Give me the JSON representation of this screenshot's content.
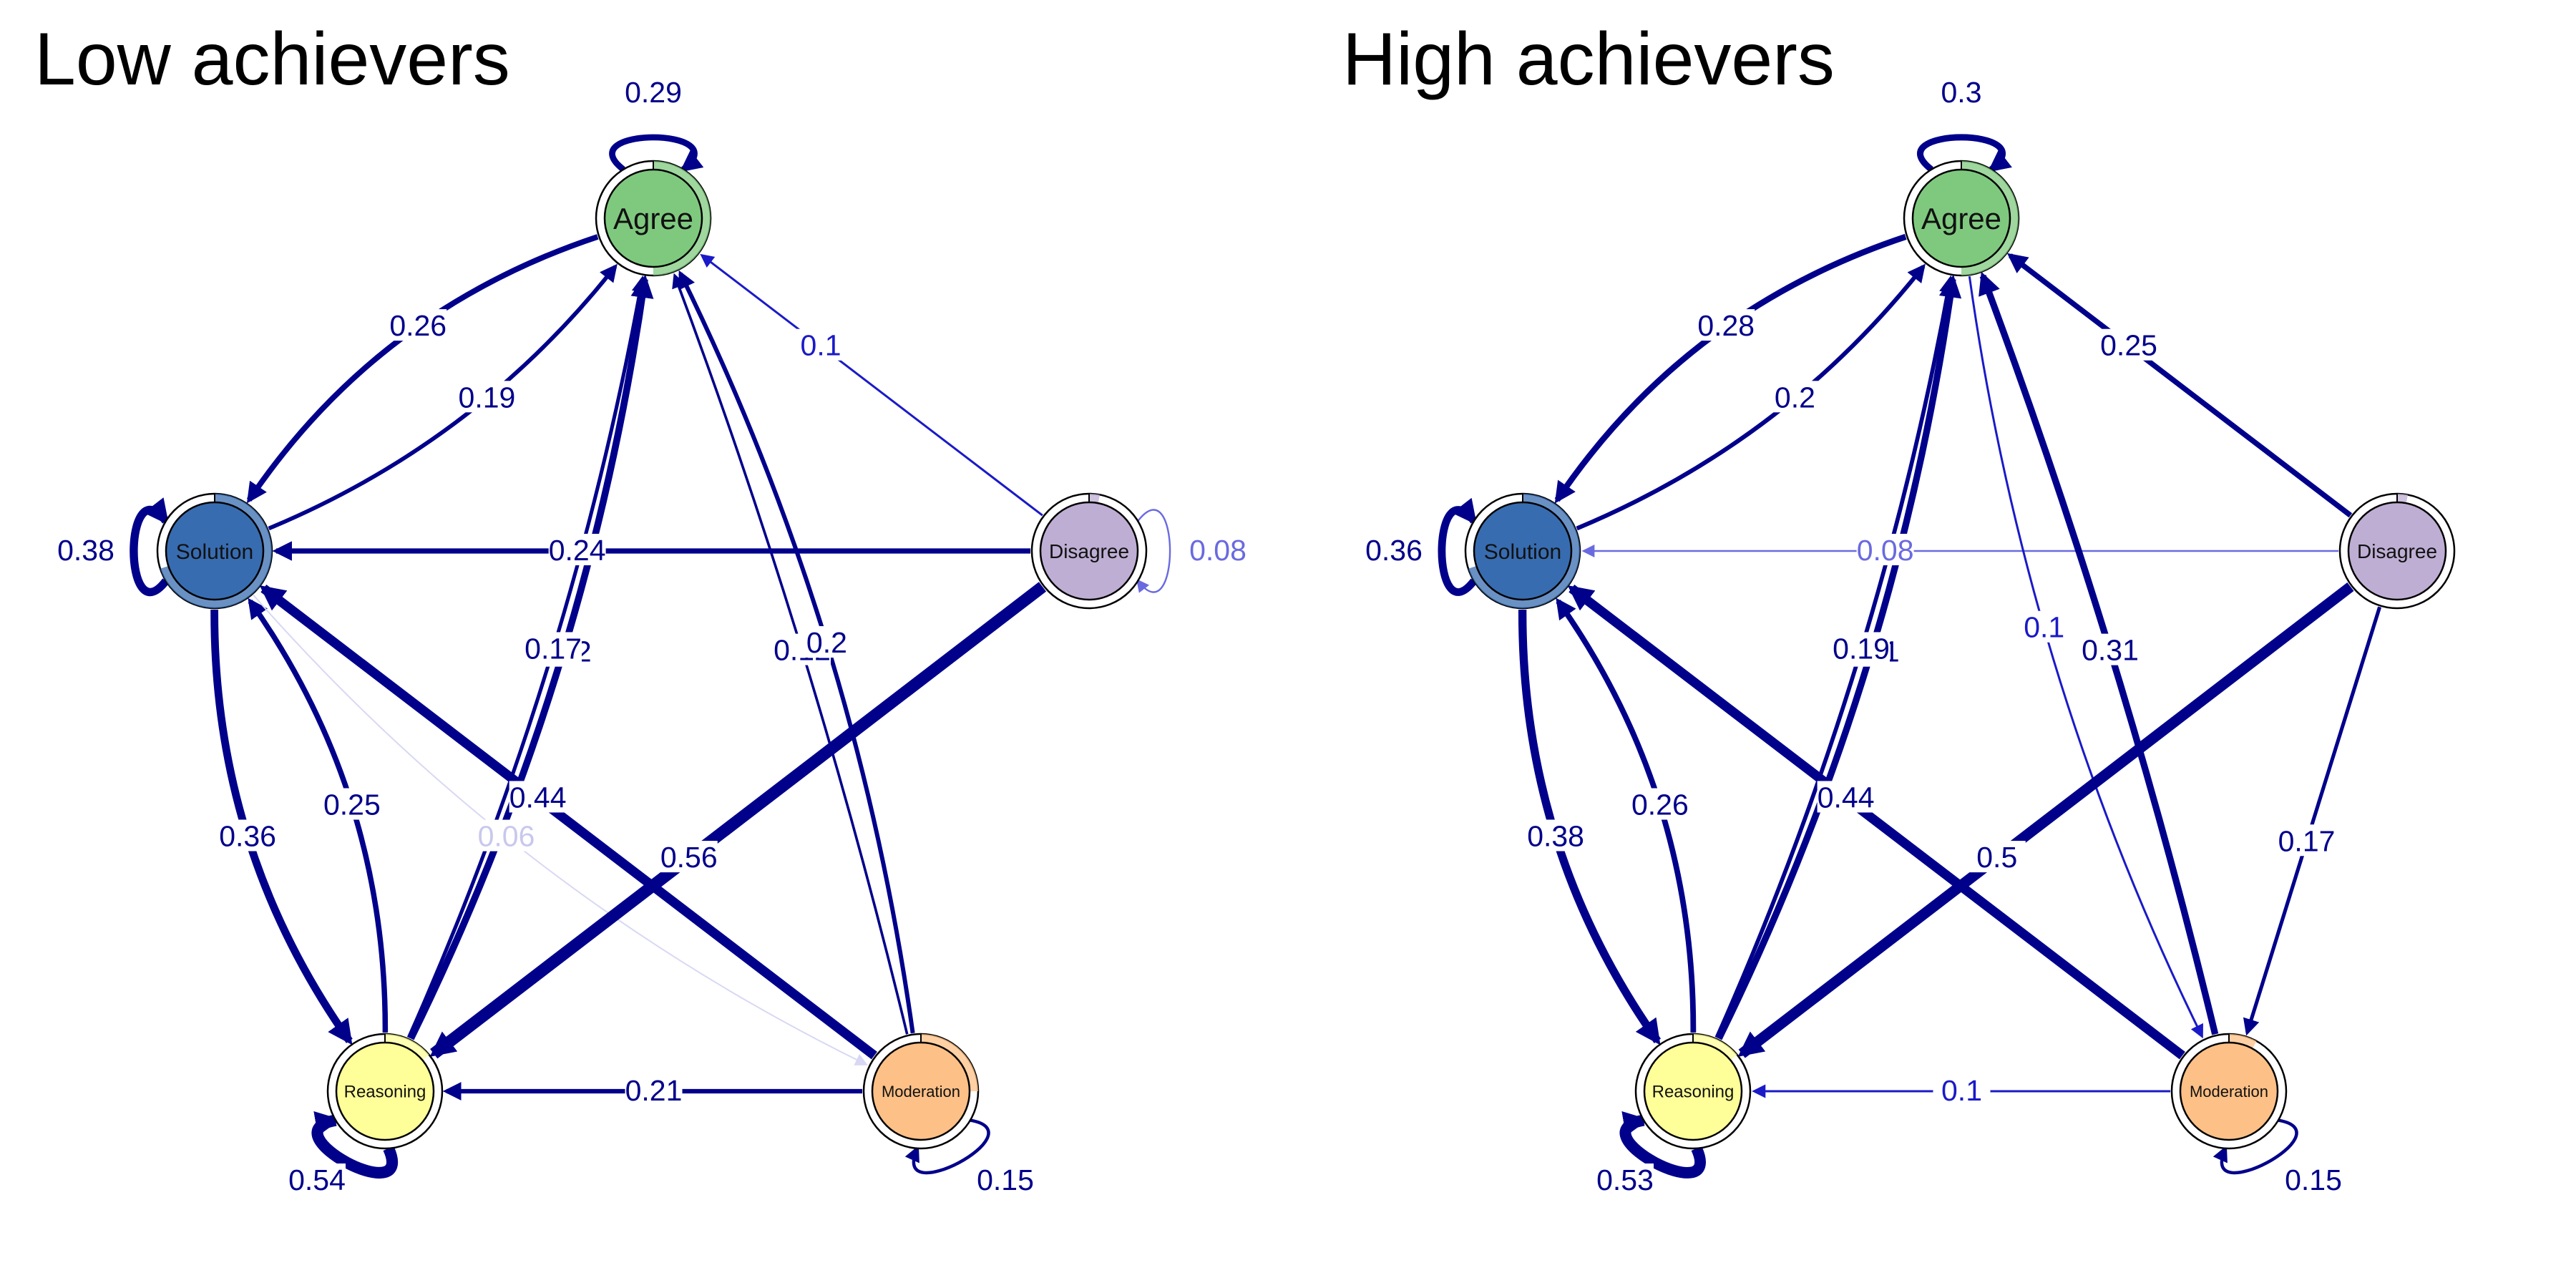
{
  "panels": [
    {
      "id": "low",
      "title": "Low achievers",
      "nodes": [
        {
          "id": "agree",
          "label": "Agree",
          "color": "#7fc97f",
          "ring": 0.5
        },
        {
          "id": "solution",
          "label": "Solution",
          "color": "#386cb0",
          "ring": 0.7
        },
        {
          "id": "disagree",
          "label": "Disagree",
          "color": "#beaed4",
          "ring": 0.03
        },
        {
          "id": "reasoning",
          "label": "Reasoning",
          "color": "#ffff99",
          "ring": 0.14
        },
        {
          "id": "moderation",
          "label": "Moderation",
          "color": "#fdc086",
          "ring": 0.25
        }
      ],
      "edges": [
        {
          "from": "agree",
          "to": "agree",
          "weight": 0.29,
          "label": "0.29"
        },
        {
          "from": "solution",
          "to": "solution",
          "weight": 0.38,
          "label": "0.38"
        },
        {
          "from": "disagree",
          "to": "disagree",
          "weight": 0.08,
          "label": "0.08"
        },
        {
          "from": "reasoning",
          "to": "reasoning",
          "weight": 0.54,
          "label": "0.54"
        },
        {
          "from": "moderation",
          "to": "moderation",
          "weight": 0.15,
          "label": "0.15"
        },
        {
          "from": "agree",
          "to": "solution",
          "weight": 0.26,
          "label": "0.26"
        },
        {
          "from": "solution",
          "to": "agree",
          "weight": 0.19,
          "label": "0.19"
        },
        {
          "from": "disagree",
          "to": "agree",
          "weight": 0.1,
          "label": "0.1"
        },
        {
          "from": "disagree",
          "to": "solution",
          "weight": 0.24,
          "label": "0.24"
        },
        {
          "from": "reasoning",
          "to": "agree",
          "weight": 0.32,
          "label": "0.32"
        },
        {
          "from": "reasoning",
          "to": "agree",
          "weight": 0.17,
          "label": "0.17"
        },
        {
          "from": "moderation",
          "to": "agree",
          "weight": 0.12,
          "label": "0.12"
        },
        {
          "from": "moderation",
          "to": "agree",
          "weight": 0.2,
          "label": "0.2"
        },
        {
          "from": "solution",
          "to": "reasoning",
          "weight": 0.36,
          "label": "0.36"
        },
        {
          "from": "reasoning",
          "to": "solution",
          "weight": 0.25,
          "label": "0.25"
        },
        {
          "from": "moderation",
          "to": "solution",
          "weight": 0.44,
          "label": "0.44"
        },
        {
          "from": "solution",
          "to": "moderation",
          "weight": 0.06,
          "label": "0.06"
        },
        {
          "from": "disagree",
          "to": "reasoning",
          "weight": 0.56,
          "label": "0.56"
        },
        {
          "from": "moderation",
          "to": "reasoning",
          "weight": 0.21,
          "label": "0.21"
        }
      ]
    },
    {
      "id": "high",
      "title": "High achievers",
      "nodes": [
        {
          "id": "agree",
          "label": "Agree",
          "color": "#7fc97f",
          "ring": 0.5
        },
        {
          "id": "solution",
          "label": "Solution",
          "color": "#386cb0",
          "ring": 0.7
        },
        {
          "id": "disagree",
          "label": "Disagree",
          "color": "#beaed4",
          "ring": 0.03
        },
        {
          "id": "reasoning",
          "label": "Reasoning",
          "color": "#ffff99",
          "ring": 0.14
        },
        {
          "id": "moderation",
          "label": "Moderation",
          "color": "#fdc086",
          "ring": 0.08
        }
      ],
      "edges": [
        {
          "from": "agree",
          "to": "agree",
          "weight": 0.3,
          "label": "0.3"
        },
        {
          "from": "solution",
          "to": "solution",
          "weight": 0.36,
          "label": "0.36"
        },
        {
          "from": "reasoning",
          "to": "reasoning",
          "weight": 0.53,
          "label": "0.53"
        },
        {
          "from": "moderation",
          "to": "moderation",
          "weight": 0.15,
          "label": "0.15"
        },
        {
          "from": "agree",
          "to": "solution",
          "weight": 0.28,
          "label": "0.28"
        },
        {
          "from": "solution",
          "to": "agree",
          "weight": 0.2,
          "label": "0.2"
        },
        {
          "from": "disagree",
          "to": "agree",
          "weight": 0.25,
          "label": "0.25"
        },
        {
          "from": "disagree",
          "to": "solution",
          "weight": 0.08,
          "label": "0.08"
        },
        {
          "from": "reasoning",
          "to": "agree",
          "weight": 0.31,
          "label": "0.31"
        },
        {
          "from": "reasoning",
          "to": "agree",
          "weight": 0.19,
          "label": "0.19"
        },
        {
          "from": "agree",
          "to": "moderation",
          "weight": 0.1,
          "label": "0.1"
        },
        {
          "from": "moderation",
          "to": "agree",
          "weight": 0.31,
          "label": "0.31"
        },
        {
          "from": "solution",
          "to": "reasoning",
          "weight": 0.38,
          "label": "0.38"
        },
        {
          "from": "reasoning",
          "to": "solution",
          "weight": 0.26,
          "label": "0.26"
        },
        {
          "from": "moderation",
          "to": "solution",
          "weight": 0.44,
          "label": "0.44"
        },
        {
          "from": "disagree",
          "to": "reasoning",
          "weight": 0.5,
          "label": "0.5"
        },
        {
          "from": "disagree",
          "to": "moderation",
          "weight": 0.17,
          "label": "0.17"
        },
        {
          "from": "moderation",
          "to": "reasoning",
          "weight": 0.1,
          "label": "0.1"
        }
      ]
    }
  ]
}
